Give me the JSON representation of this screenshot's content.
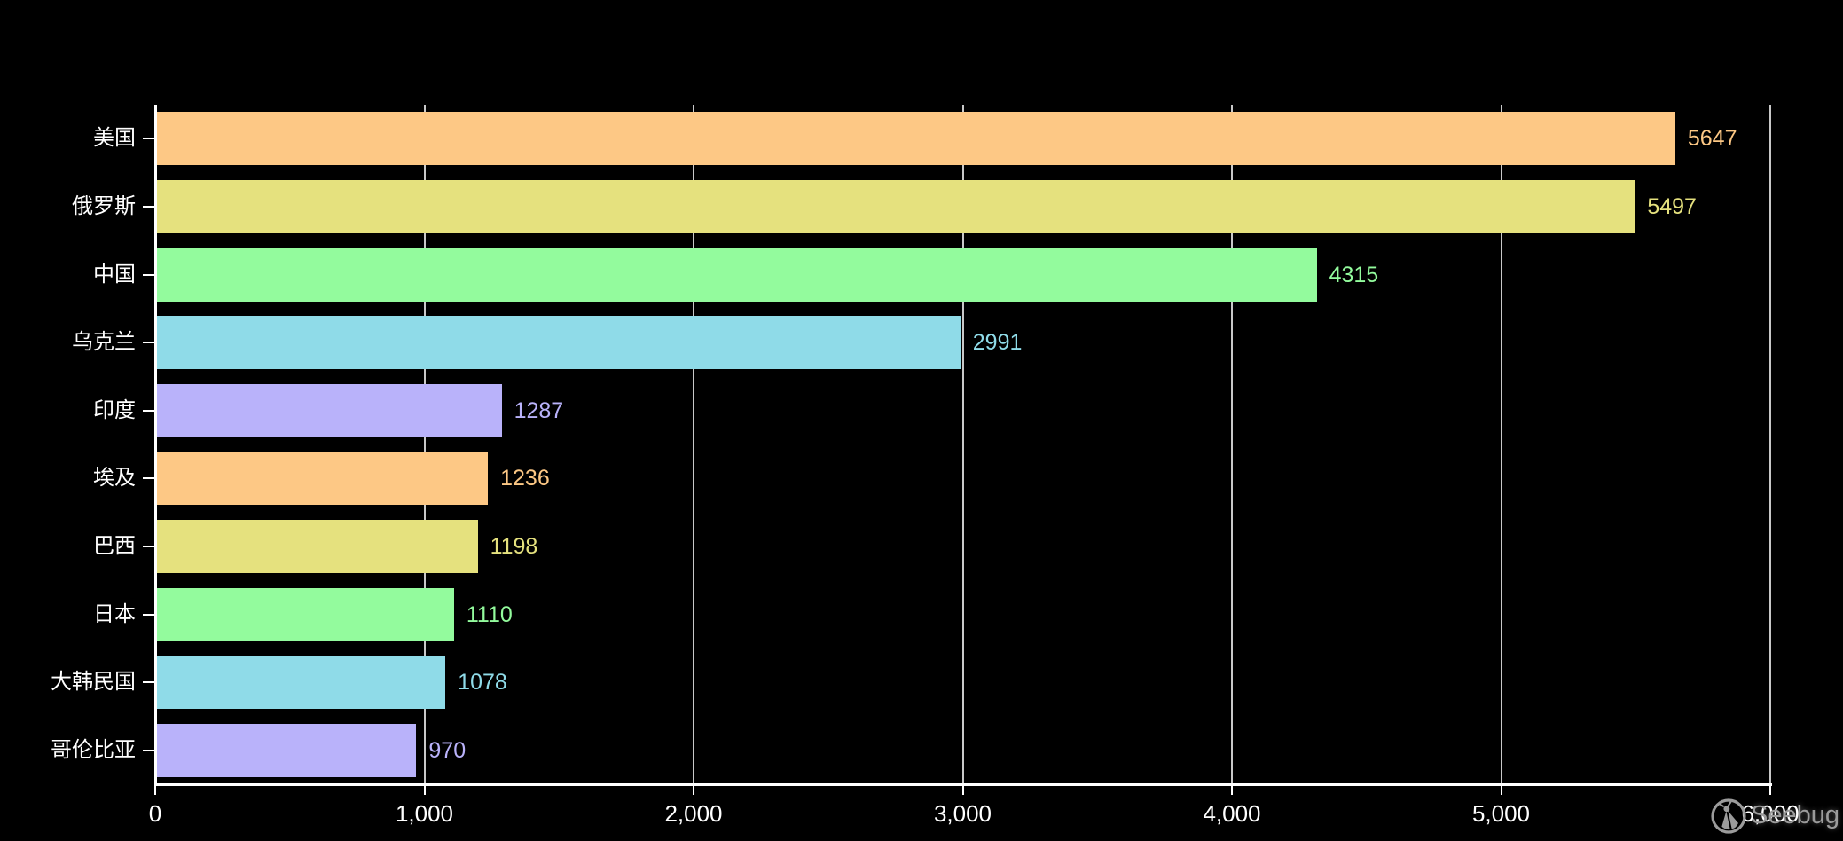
{
  "chart_data": {
    "type": "bar",
    "orientation": "horizontal",
    "title": "",
    "categories": [
      "美国",
      "俄罗斯",
      "中国",
      "乌克兰",
      "印度",
      "埃及",
      "巴西",
      "日本",
      "大韩民国",
      "哥伦比亚"
    ],
    "values": [
      5647,
      5497,
      4315,
      2991,
      1287,
      1236,
      1198,
      1110,
      1078,
      970
    ],
    "bar_colors": [
      "#fdc885",
      "#e5e17e",
      "#93fb9d",
      "#8fdbe8",
      "#b9b2fa",
      "#fdc885",
      "#e5e17e",
      "#93fb9d",
      "#8fdbe8",
      "#b9b2fa"
    ],
    "value_labels": [
      "5647",
      "5497",
      "4315",
      "2991",
      "1287",
      "1236",
      "1198",
      "1110",
      "1078",
      "970"
    ],
    "xlabel": "",
    "ylabel": "",
    "xlim": [
      0,
      6000
    ],
    "x_tick_values": [
      0,
      1000,
      2000,
      3000,
      4000,
      5000,
      6000
    ],
    "x_tick_labels": [
      "0",
      "1,000",
      "2,000",
      "3,000",
      "4,000",
      "5,000",
      "6,000"
    ],
    "grid": true,
    "legend": null,
    "background_color": "#000000",
    "axis_color": "#ffffff",
    "gridline_color": "#c8c8c8",
    "tick_label_color": "#ffffff",
    "category_label_color": "#ffffff"
  },
  "watermark": {
    "text": "Seebug",
    "color": "#9b9b9b",
    "icon": "ladybug-logo"
  }
}
